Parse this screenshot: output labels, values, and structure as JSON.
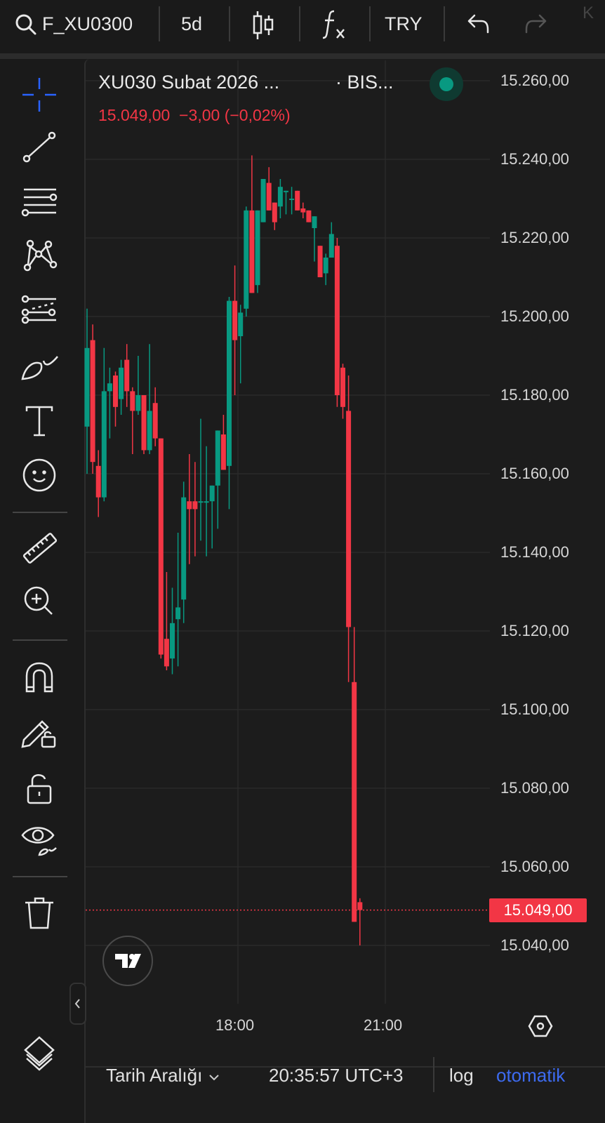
{
  "toolbar": {
    "symbol": "F_XU0300",
    "interval": "5d",
    "currency": "TRY",
    "overflow_letter": "K",
    "icons": [
      "search-icon",
      "candles-icon",
      "fx-indicators-icon",
      "undo-icon",
      "redo-icon"
    ]
  },
  "legend": {
    "title": "XU030 Subat 2026 ...",
    "exchange": "· BIS...",
    "last": "15.049,00",
    "change": "−3,00",
    "change_pct": "(−0,02%)",
    "status_color": "#089981"
  },
  "left_tools": [
    "crosshair-icon",
    "trend-line-icon",
    "fib-lines-icon",
    "pattern-icon",
    "forecast-icon",
    "brush-icon",
    "text-icon",
    "emoji-icon",
    "ruler-icon",
    "zoom-in-icon",
    "magnet-icon",
    "lock-drawing-icon",
    "unlock-icon",
    "hide-drawings-icon",
    "trash-icon",
    "layers-icon"
  ],
  "bottom": {
    "date_range": "Tarih Aralığı",
    "clock": "20:35:57 UTC+3",
    "log": "log",
    "auto": "otomatik"
  },
  "colors": {
    "up": "#089981",
    "down": "#f23645",
    "accent": "#2962ff",
    "background": "#1c1c1c"
  },
  "chart_data": {
    "type": "candlestick",
    "y_ticks": [
      "15.260,00",
      "15.240,00",
      "15.220,00",
      "15.200,00",
      "15.180,00",
      "15.160,00",
      "15.140,00",
      "15.120,00",
      "15.100,00",
      "15.080,00",
      "15.060,00",
      "15.040,00"
    ],
    "y_tick_values": [
      15260,
      15240,
      15220,
      15200,
      15180,
      15160,
      15140,
      15120,
      15100,
      15080,
      15060,
      15040
    ],
    "x_ticks": [
      "18:00",
      "21:00"
    ],
    "current_price": 15049,
    "current_price_label": "15.049,00",
    "grid": true,
    "ohlc": [
      [
        15172,
        15202,
        15160,
        15192
      ],
      [
        15194,
        15198,
        15160,
        15163
      ],
      [
        15162,
        15166,
        15149,
        15154
      ],
      [
        15154,
        15192,
        15153,
        15181
      ],
      [
        15181,
        15187,
        15169,
        15183
      ],
      [
        15185,
        15186,
        15172,
        15177
      ],
      [
        15179,
        15189,
        15175,
        15187
      ],
      [
        15189,
        15193,
        15177,
        15181
      ],
      [
        15181,
        15182,
        15165,
        15176
      ],
      [
        15176,
        15190,
        15175,
        15180
      ],
      [
        15180,
        15180,
        15165,
        15166
      ],
      [
        15166,
        15193,
        15165,
        15176
      ],
      [
        15178,
        15182,
        15167,
        15169
      ],
      [
        15169,
        15169,
        15113,
        15114
      ],
      [
        15118,
        15135,
        15110,
        15111
      ],
      [
        15113,
        15131,
        15109,
        15122
      ],
      [
        15123,
        15145,
        15111,
        15126
      ],
      [
        15128,
        15158,
        15122,
        15154
      ],
      [
        15153,
        15165,
        15137,
        15151
      ],
      [
        15153,
        15163,
        15139,
        15151
      ],
      [
        15153,
        15174,
        15143,
        15153
      ],
      [
        15153,
        15167,
        15139,
        15153
      ],
      [
        15153,
        15157,
        15141,
        15157
      ],
      [
        15157,
        15171,
        15146,
        15171
      ],
      [
        15170,
        15175,
        15161,
        15161
      ],
      [
        15162,
        15205,
        15151,
        15204
      ],
      [
        15204,
        15213,
        15180,
        15194
      ],
      [
        15195,
        15203,
        15183,
        15201
      ],
      [
        15202,
        15228,
        15200,
        15227
      ],
      [
        15227,
        15241,
        15206,
        15206
      ],
      [
        15208,
        15227,
        15206,
        15227
      ],
      [
        15224,
        15235,
        15224,
        15235
      ],
      [
        15234,
        15238,
        15227,
        15227
      ],
      [
        15229,
        15229,
        15222,
        15224
      ],
      [
        15228,
        15235,
        15225,
        15233
      ],
      [
        15232,
        15232,
        15226,
        15232
      ],
      [
        15230,
        15233,
        15226,
        15230
      ],
      [
        15232,
        15232,
        15227,
        15227
      ],
      [
        15227.5,
        15229,
        15225,
        15226.5
      ],
      [
        15227,
        15227,
        15224,
        15224
      ],
      [
        15222.5,
        15225.5,
        15214,
        15225.5
      ],
      [
        15218,
        15218,
        15210,
        15210
      ],
      [
        15211,
        15216,
        15208,
        15215
      ],
      [
        15215,
        15224,
        15215,
        15221
      ],
      [
        15218,
        15220,
        15177,
        15180
      ],
      [
        15187,
        15188,
        15174,
        15177
      ],
      [
        15176,
        15185,
        15107,
        15121
      ],
      [
        15107,
        15121,
        15046,
        15046
      ],
      [
        15051,
        15052,
        15040,
        15049
      ]
    ]
  }
}
